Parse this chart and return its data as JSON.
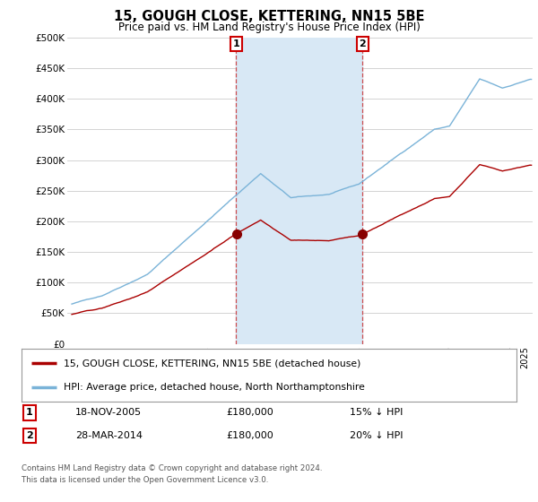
{
  "title": "15, GOUGH CLOSE, KETTERING, NN15 5BE",
  "subtitle": "Price paid vs. HM Land Registry's House Price Index (HPI)",
  "ylabel_ticks": [
    "£0",
    "£50K",
    "£100K",
    "£150K",
    "£200K",
    "£250K",
    "£300K",
    "£350K",
    "£400K",
    "£450K",
    "£500K"
  ],
  "ytick_values": [
    0,
    50000,
    100000,
    150000,
    200000,
    250000,
    300000,
    350000,
    400000,
    450000,
    500000
  ],
  "ylim": [
    0,
    500000
  ],
  "xlim_start": 1994.7,
  "xlim_end": 2025.5,
  "hpi_color": "#7ab3d8",
  "hpi_fill_color": "#d8e8f5",
  "price_color": "#aa0000",
  "sale1_date": 2005.88,
  "sale1_price": 180000,
  "sale2_date": 2014.24,
  "sale2_price": 180000,
  "legend_property": "15, GOUGH CLOSE, KETTERING, NN15 5BE (detached house)",
  "legend_hpi": "HPI: Average price, detached house, North Northamptonshire",
  "annotation1_label": "1",
  "annotation1_date": "18-NOV-2005",
  "annotation1_price": "£180,000",
  "annotation1_hpi": "15% ↓ HPI",
  "annotation2_label": "2",
  "annotation2_date": "28-MAR-2014",
  "annotation2_price": "£180,000",
  "annotation2_hpi": "20% ↓ HPI",
  "footer": "Contains HM Land Registry data © Crown copyright and database right 2024.\nThis data is licensed under the Open Government Licence v3.0.",
  "bg_color": "#ffffff",
  "plot_bg_color": "#ffffff",
  "grid_color": "#cccccc"
}
